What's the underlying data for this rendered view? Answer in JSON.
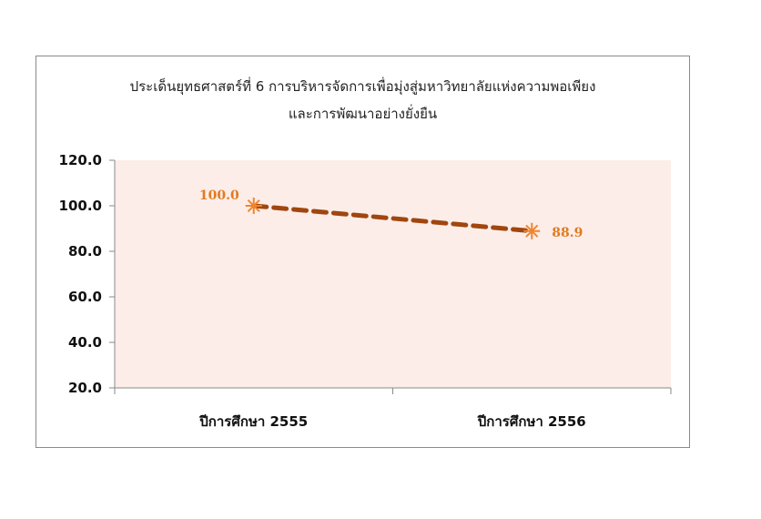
{
  "chart_data": {
    "type": "line",
    "title_line1": "ประเด็นยุทธศาสตร์ที่ 6  การบริหารจัดการเพื่อมุ่งสู่มหาวิทยาลัยแห่งความพอเพียง",
    "title_line2": "และการพัฒนาอย่างยั่งยืน",
    "categories": [
      "ปีการศึกษา 2555",
      "ปีการศึกษา 2556"
    ],
    "values": [
      100.0,
      88.9
    ],
    "value_labels": [
      "100.0",
      "88.9"
    ],
    "ylim": [
      20.0,
      120.0
    ],
    "yticks": [
      "20.0",
      "40.0",
      "60.0",
      "80.0",
      "100.0",
      "120.0"
    ],
    "ytick_values": [
      20,
      40,
      60,
      80,
      100,
      120
    ],
    "grid": false,
    "legend": "none",
    "colors": {
      "plot_area": "#fcede9",
      "line": "#a0460e",
      "marker": "#f0852e",
      "label": "#e07b20"
    }
  }
}
